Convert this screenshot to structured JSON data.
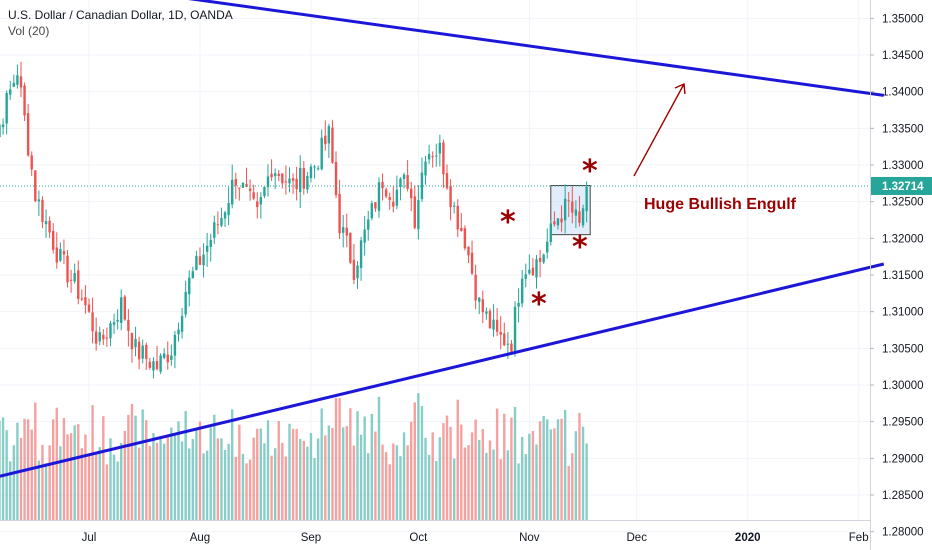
{
  "legend": {
    "title": "U.S. Dollar / Canadian Dollar, 1D, OANDA",
    "volume": "Vol (20)"
  },
  "colors": {
    "up": "#26a69a",
    "down": "#ef5350",
    "trendline": "#1c17d8",
    "annotation": "#9c0000",
    "price_tag": "#26a69a",
    "highlight_box": "#bcd7f4"
  },
  "chart_data": {
    "type": "candlestick",
    "y_axis": {
      "ylim": [
        1.2775,
        1.3525
      ],
      "ticks": [
        "1.35000",
        "1.34500",
        "1.34000",
        "1.33500",
        "1.33000",
        "1.32500",
        "1.32000",
        "1.31500",
        "1.31000",
        "1.30500",
        "1.30000",
        "1.29500",
        "1.29000",
        "1.28500",
        "1.28000"
      ]
    },
    "x_axis": {
      "labels": [
        {
          "text": "Jul",
          "day": 15,
          "bold": false
        },
        {
          "text": "Aug",
          "day": 46,
          "bold": false
        },
        {
          "text": "Sep",
          "day": 77,
          "bold": false
        },
        {
          "text": "Oct",
          "day": 107,
          "bold": false
        },
        {
          "text": "Nov",
          "day": 138,
          "bold": false
        },
        {
          "text": "Dec",
          "day": 168,
          "bold": false
        },
        {
          "text": "2020",
          "day": 199,
          "bold": true
        },
        {
          "text": "Feb",
          "day": 230,
          "bold": false
        }
      ]
    },
    "last_price": "1.32714",
    "trendlines": [
      {
        "name": "upper",
        "from": [
          -19,
          1.3569
        ],
        "to": [
          237,
          1.3395
        ]
      },
      {
        "name": "lower",
        "from": [
          -19,
          1.2865
        ],
        "to": [
          237,
          1.3165
        ]
      }
    ],
    "annotation": "Huge Bullish Engulf",
    "markers": [
      "*",
      "*",
      "*",
      "*"
    ],
    "anchors": [
      {
        "day": -15,
        "price": 1.323
      },
      {
        "day": -12,
        "price": 1.3325
      },
      {
        "day": -5,
        "price": 1.343
      },
      {
        "day": 0,
        "price": 1.326
      },
      {
        "day": 7,
        "price": 1.317
      },
      {
        "day": 13,
        "price": 1.312
      },
      {
        "day": 18,
        "price": 1.3055
      },
      {
        "day": 24,
        "price": 1.311
      },
      {
        "day": 28,
        "price": 1.3048
      },
      {
        "day": 34,
        "price": 1.3025
      },
      {
        "day": 38,
        "price": 1.305
      },
      {
        "day": 42,
        "price": 1.313
      },
      {
        "day": 47,
        "price": 1.318
      },
      {
        "day": 52,
        "price": 1.323
      },
      {
        "day": 56,
        "price": 1.3285
      },
      {
        "day": 62,
        "price": 1.323
      },
      {
        "day": 66,
        "price": 1.33
      },
      {
        "day": 72,
        "price": 1.327
      },
      {
        "day": 78,
        "price": 1.33
      },
      {
        "day": 82,
        "price": 1.334
      },
      {
        "day": 85,
        "price": 1.322
      },
      {
        "day": 89,
        "price": 1.316
      },
      {
        "day": 93,
        "price": 1.322
      },
      {
        "day": 97,
        "price": 1.328
      },
      {
        "day": 100,
        "price": 1.326
      },
      {
        "day": 104,
        "price": 1.328
      },
      {
        "day": 106,
        "price": 1.323
      },
      {
        "day": 109,
        "price": 1.332
      },
      {
        "day": 113,
        "price": 1.332
      },
      {
        "day": 117,
        "price": 1.324
      },
      {
        "day": 120,
        "price": 1.32
      },
      {
        "day": 124,
        "price": 1.311
      },
      {
        "day": 129,
        "price": 1.3065
      },
      {
        "day": 133,
        "price": 1.306
      },
      {
        "day": 136,
        "price": 1.316
      },
      {
        "day": 141,
        "price": 1.317
      },
      {
        "day": 146,
        "price": 1.323
      },
      {
        "day": 149,
        "price": 1.3245
      },
      {
        "day": 152,
        "price": 1.3215
      },
      {
        "day": 154,
        "price": 1.327
      }
    ],
    "volume_range": [
      0,
      160
    ]
  }
}
